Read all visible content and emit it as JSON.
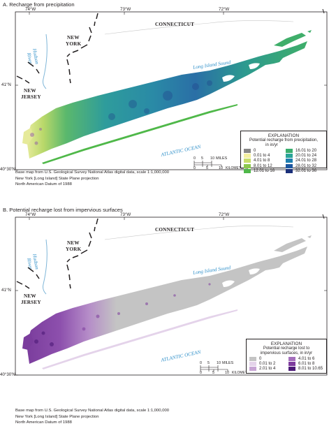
{
  "panel_a": {
    "title": "A.    Recharge from precipitation",
    "lon_ticks": [
      "74°W",
      "73°W",
      "72°W"
    ],
    "lat_ticks": [
      "41°N",
      "40°30'N"
    ],
    "states": {
      "ny_line1": "NEW",
      "ny_line2": "YORK",
      "nj_line1": "NEW",
      "nj_line2": "JERSEY",
      "ct": "CONNECTICUT"
    },
    "water": {
      "hudson_line1": "Hudson",
      "hudson_line2": "River",
      "sound": "Long Island Sound",
      "ocean": "ATLANTIC OCEAN"
    },
    "legend": {
      "heading": "EXPLANATION",
      "subtitle_line1": "Potential recharge from precipitation,",
      "subtitle_line2": "in in/yr",
      "items": [
        {
          "label": "0",
          "color": "#888888"
        },
        {
          "label": "0.01 to 4",
          "color": "#f4f0a0"
        },
        {
          "label": "4.01 to 8",
          "color": "#c7dd6b"
        },
        {
          "label": "8.01 to 12",
          "color": "#8bc84d"
        },
        {
          "label": "12.01 to 16",
          "color": "#4fb849"
        },
        {
          "label": "16.01 to 20",
          "color": "#3aae6e"
        },
        {
          "label": "20.01 to 24",
          "color": "#2aa497"
        },
        {
          "label": "24.01 to 28",
          "color": "#1f7fb0"
        },
        {
          "label": "28.01 to 32",
          "color": "#1d58a0"
        },
        {
          "label": "32.01 to 36",
          "color": "#1a2f79"
        }
      ]
    },
    "scale": {
      "miles_ticks": [
        "0",
        "5",
        "10"
      ],
      "miles_unit": "MILES",
      "km_ticks": [
        "0",
        "5",
        "10"
      ],
      "km_unit": "KILOMETERS"
    },
    "credits": [
      "Base map from U.S. Geological Survey National Atlas digital data, scale 1:1,000,000",
      "New York [Long Island] State Plane projection",
      "North American Datum of 1988"
    ]
  },
  "panel_b": {
    "title": "B.    Potential recharge lost from impervious surfaces",
    "lon_ticks": [
      "74°W",
      "73°W",
      "72°W"
    ],
    "lat_ticks": [
      "41°N",
      "40°30'N"
    ],
    "states": {
      "ny_line1": "NEW",
      "ny_line2": "YORK",
      "nj_line1": "NEW",
      "nj_line2": "JERSEY",
      "ct": "CONNECTICUT"
    },
    "water": {
      "hudson_line1": "Hudson",
      "hudson_line2": "River",
      "sound": "Long Island Sound",
      "ocean": "ATLANTIC OCEAN"
    },
    "legend": {
      "heading": "EXPLANATION",
      "subtitle_line1": "Potential recharge lost to",
      "subtitle_line2": "impervious surfaces, in in/yr",
      "items": [
        {
          "label": "0",
          "color": "#c4c4c4"
        },
        {
          "label": "0.01 to 2",
          "color": "#e4d3ea"
        },
        {
          "label": "2.01 to 4",
          "color": "#c7a4d4"
        },
        {
          "label": "4.01 to 6",
          "color": "#a46fbc"
        },
        {
          "label": "6.01 to 8",
          "color": "#7e3b9e"
        },
        {
          "label": "8.01 to 10.65",
          "color": "#4d1a78"
        }
      ]
    },
    "scale": {
      "miles_ticks": [
        "0",
        "5",
        "10"
      ],
      "miles_unit": "MILES",
      "km_ticks": [
        "0",
        "5",
        "10"
      ],
      "km_unit": "KILOMETERS"
    },
    "credits": [
      "Base map from U.S. Geological Survey National Atlas digital data, scale 1:1,000,000",
      "New York [Long Island] State Plane projection",
      "North American Datum of 1988"
    ]
  }
}
